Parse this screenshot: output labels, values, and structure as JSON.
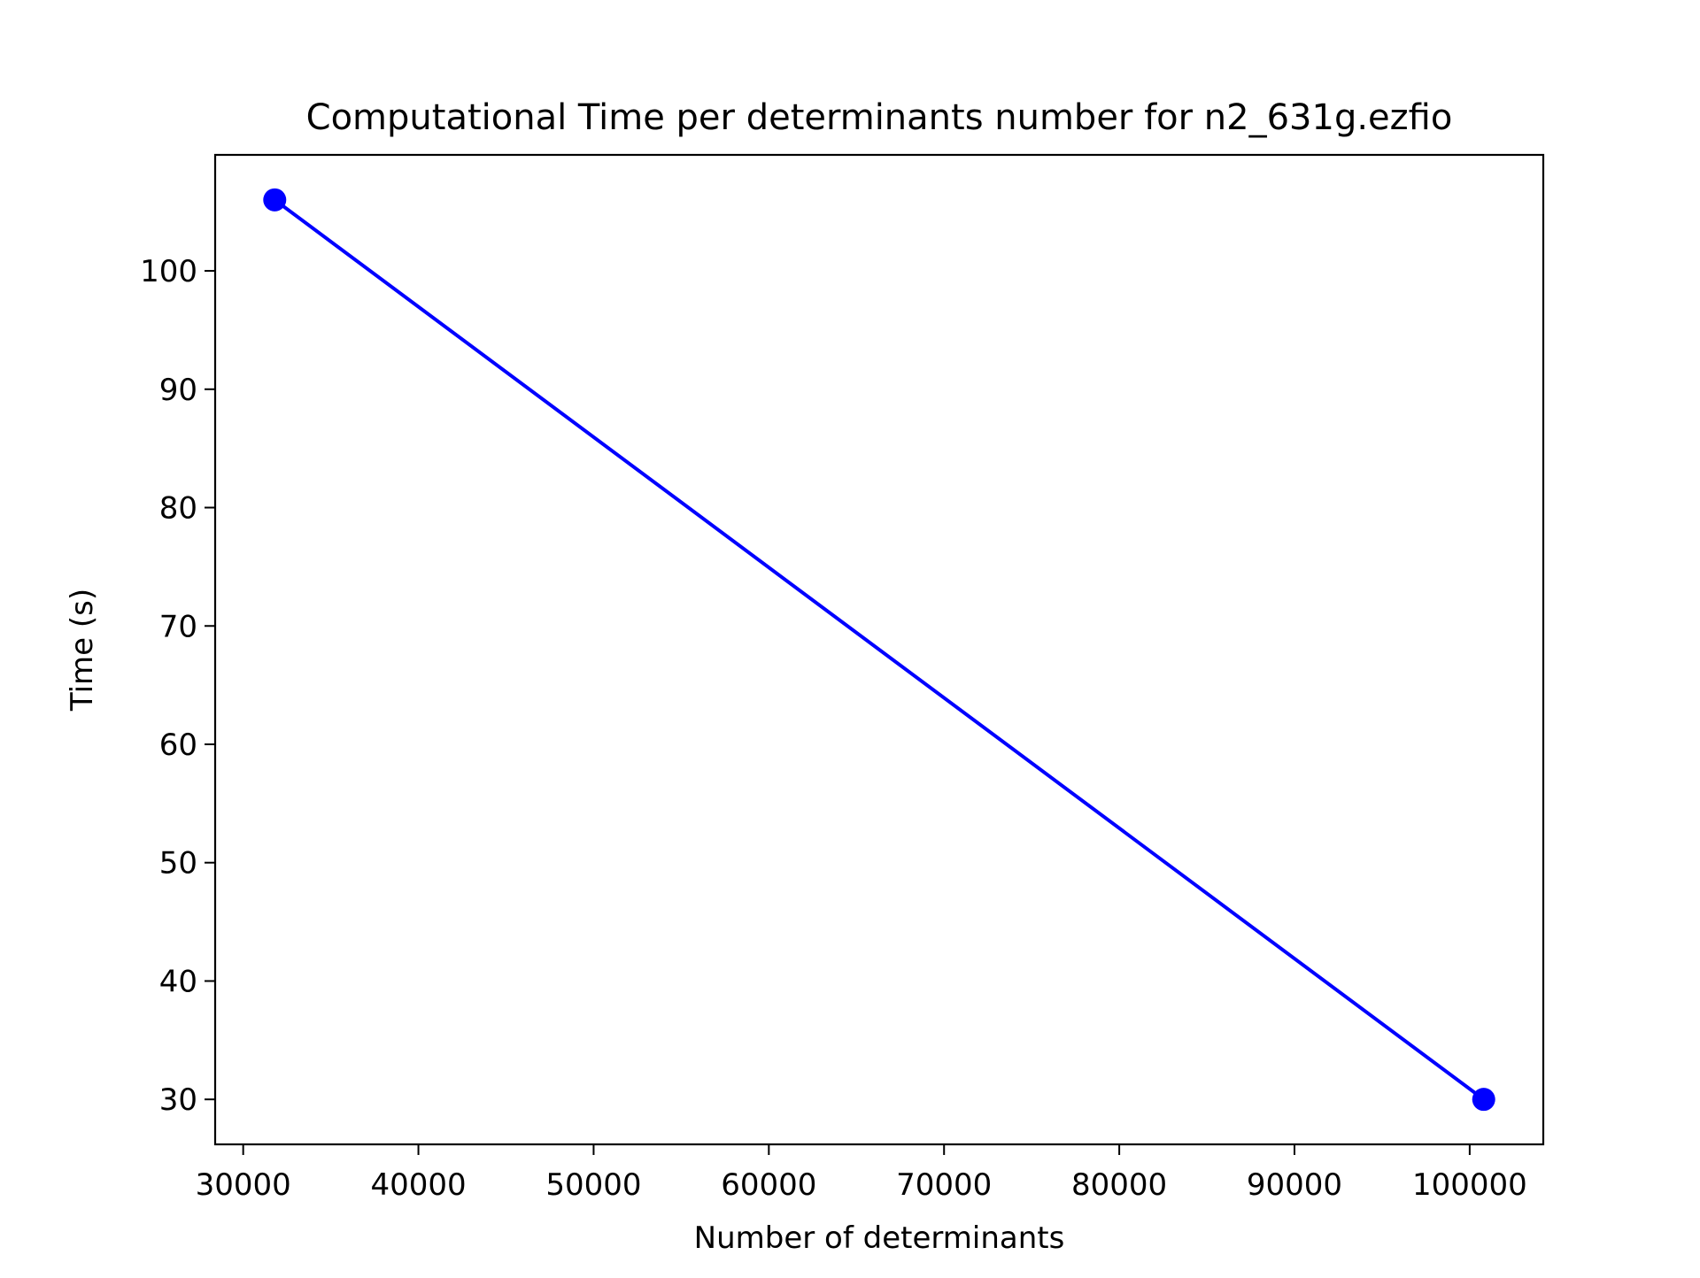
{
  "chart_data": {
    "type": "line",
    "title": "Computational Time per determinants number for n2_631g.ezfio",
    "xlabel": "Number of determinants",
    "ylabel": "Time (s)",
    "x": [
      31800,
      100800
    ],
    "series": [
      {
        "values": [
          106,
          30
        ],
        "color": "#0000ff",
        "marker": "circle"
      }
    ],
    "xlim": [
      28400,
      104200
    ],
    "ylim": [
      26.2,
      109.8
    ],
    "xticks": [
      30000,
      40000,
      50000,
      60000,
      70000,
      80000,
      90000,
      100000
    ],
    "yticks": [
      30,
      40,
      50,
      60,
      70,
      80,
      90,
      100
    ],
    "grid": false,
    "legend": "none"
  }
}
